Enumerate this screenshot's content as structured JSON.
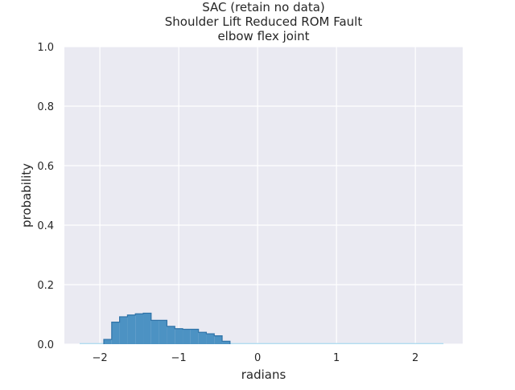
{
  "chart_data": {
    "type": "histogram",
    "title": [
      "SAC (retain no data)",
      "Shoulder Lift Reduced ROM Fault",
      "elbow flex joint"
    ],
    "xlabel": "radians",
    "ylabel": "probability",
    "xlim": [
      -2.45,
      2.6
    ],
    "ylim": [
      0,
      1.0
    ],
    "x_ticks": [
      -2,
      -1,
      0,
      1,
      2
    ],
    "x_tick_labels": [
      "−2",
      "−1",
      "0",
      "1",
      "2"
    ],
    "y_ticks": [
      0.0,
      0.2,
      0.4,
      0.6,
      0.8,
      1.0
    ],
    "y_tick_labels": [
      "0.0",
      "0.2",
      "0.4",
      "0.6",
      "0.8",
      "1.0"
    ],
    "grid": true,
    "background": "#eaeaf2",
    "series": [
      {
        "color": "#4c92c3",
        "edge_color": "#2f73a8",
        "bin_edges": [
          -1.95,
          -1.85,
          -1.75,
          -1.65,
          -1.55,
          -1.45,
          -1.35,
          -1.25,
          -1.15,
          -1.05,
          -0.95,
          -0.85,
          -0.75,
          -0.65,
          -0.55,
          -0.45,
          -0.35
        ],
        "probabilities": [
          0.016,
          0.074,
          0.092,
          0.098,
          0.102,
          0.104,
          0.08,
          0.08,
          0.06,
          0.052,
          0.05,
          0.05,
          0.04,
          0.035,
          0.028,
          0.01
        ]
      },
      {
        "color": "#c6e7f5",
        "edge_color": "#aedcf0",
        "bin_edges": [
          -2.25,
          2.35
        ],
        "probabilities": [
          0.002
        ]
      }
    ]
  }
}
